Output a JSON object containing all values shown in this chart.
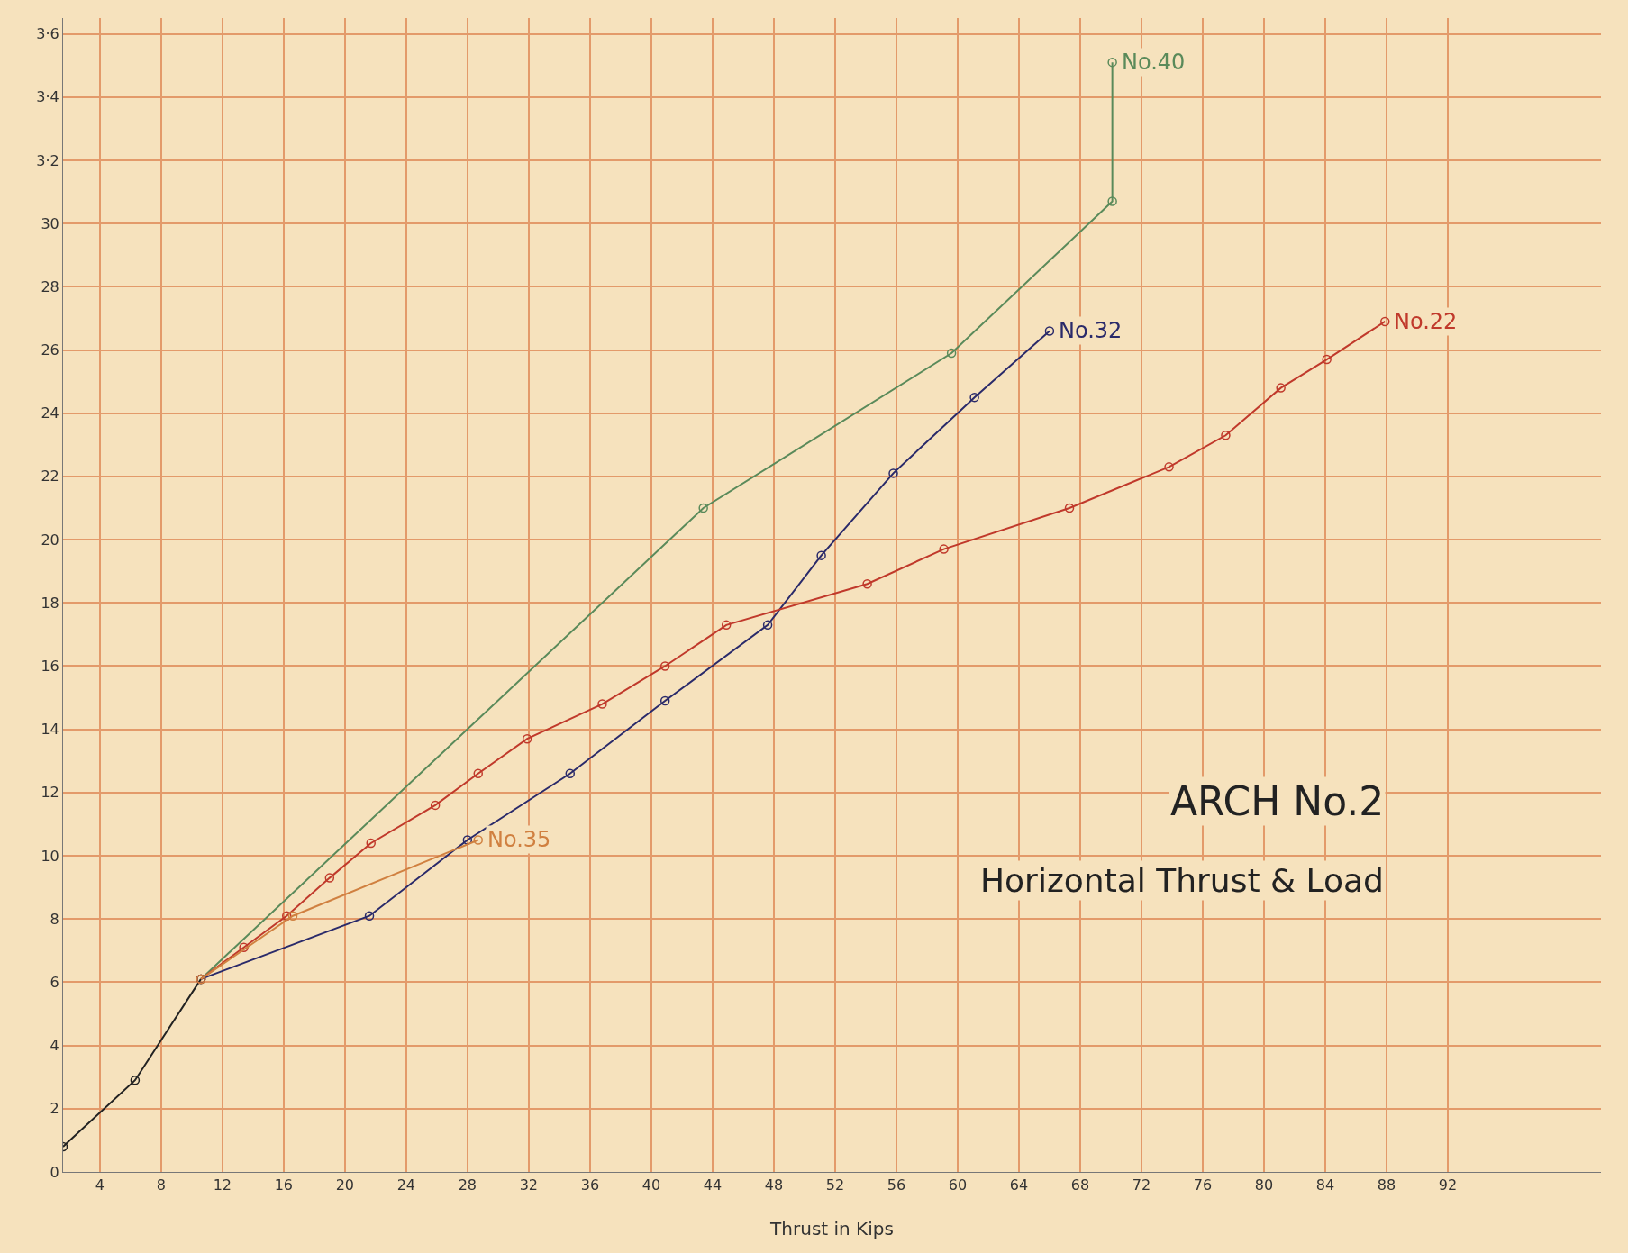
{
  "chart_data": {
    "type": "line",
    "title": "ARCH No.2",
    "subtitle": "Horizontal Thrust & Load",
    "xlabel": "Thrust in Kips",
    "xlim": [
      1.6,
      102
    ],
    "ylim": [
      0,
      36.5
    ],
    "xticks": [
      4,
      8,
      12,
      16,
      20,
      24,
      28,
      32,
      36,
      40,
      44,
      48,
      52,
      56,
      60,
      64,
      68,
      72,
      76,
      80,
      84,
      88,
      92
    ],
    "yticks": [
      0,
      2,
      4,
      6,
      8,
      10,
      12,
      14,
      16,
      18,
      20,
      22,
      24,
      26,
      28,
      30,
      {
        "value": 32,
        "label": "3·2"
      },
      {
        "value": 34,
        "label": "3·4"
      },
      {
        "value": 36,
        "label": "3·6"
      }
    ],
    "grid": true,
    "legend": false,
    "marker": "circle",
    "line_style": "solid",
    "series": [
      {
        "color": "#222222",
        "x": [
          1.6,
          6.3,
          10.6
        ],
        "values": [
          0.8,
          2.9,
          6.1
        ]
      },
      {
        "name": "No.40",
        "color": "#5a8a5a",
        "x": [
          10.6,
          43.4,
          59.6,
          70.1,
          70.1
        ],
        "values": [
          6.1,
          21.0,
          25.9,
          30.7,
          35.1
        ]
      },
      {
        "name": "No.32",
        "color": "#2a2a6a",
        "x": [
          10.6,
          21.6,
          28.0,
          34.7,
          40.9,
          47.6,
          51.1,
          55.8,
          61.1,
          66.0
        ],
        "values": [
          6.1,
          8.1,
          10.5,
          12.6,
          14.9,
          17.3,
          19.5,
          22.1,
          24.5,
          26.6
        ]
      },
      {
        "name": "No.22",
        "color": "#c0392b",
        "x": [
          10.6,
          13.4,
          16.2,
          19.0,
          21.7,
          25.9,
          28.7,
          31.9,
          36.8,
          40.9,
          44.9,
          54.1,
          59.1,
          67.3,
          73.8,
          77.5,
          81.1,
          84.1,
          87.9
        ],
        "values": [
          6.1,
          7.1,
          8.1,
          9.3,
          10.4,
          11.6,
          12.6,
          13.7,
          14.8,
          16.0,
          17.3,
          18.6,
          19.7,
          21.0,
          22.3,
          23.3,
          24.8,
          25.7,
          26.9
        ]
      },
      {
        "name": "No.35",
        "color": "#d08040",
        "x": [
          10.6,
          16.6,
          28.7
        ],
        "values": [
          6.1,
          8.1,
          10.5
        ]
      }
    ]
  }
}
